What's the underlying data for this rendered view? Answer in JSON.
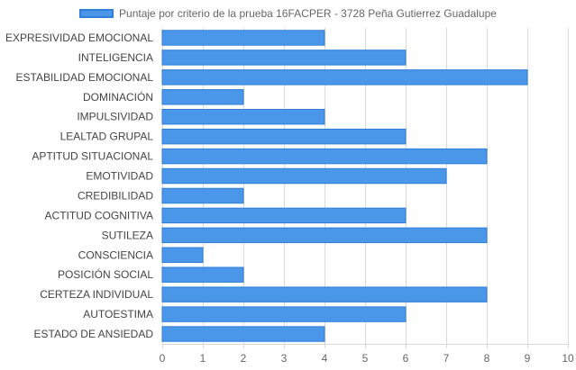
{
  "legend": {
    "label": "Puntaje por criterio de la prueba 16FACPER - 3728 Peña Gutierrez Guadalupe"
  },
  "colors": {
    "bar_fill": "#4a96e8",
    "bar_stroke": "#2f7fd8",
    "grid": "#d9d9d9",
    "axis_text": "#666666",
    "label_text": "#444444"
  },
  "chart_data": {
    "type": "bar",
    "orientation": "horizontal",
    "categories": [
      "EXPRESIVIDAD EMOCIONAL",
      "INTELIGENCIA",
      "ESTABILIDAD EMOCIONAL",
      "DOMINACIÓN",
      "IMPULSIVIDAD",
      "LEALTAD GRUPAL",
      "APTITUD SITUACIONAL",
      "EMOTIVIDAD",
      "CREDIBILIDAD",
      "ACTITUD COGNITIVA",
      "SUTILEZA",
      "CONSCIENCIA",
      "POSICIÓN SOCIAL",
      "CERTEZA INDIVIDUAL",
      "AUTOESTIMA",
      "ESTADO DE ANSIEDAD"
    ],
    "series": [
      {
        "name": "Puntaje por criterio de la prueba 16FACPER - 3728 Peña Gutierrez Guadalupe",
        "values": [
          4,
          6,
          9,
          2,
          4,
          6,
          8,
          7,
          2,
          6,
          8,
          1,
          2,
          8,
          6,
          4
        ]
      }
    ],
    "xlim": [
      0,
      10
    ],
    "xticks": [
      "0",
      "1",
      "2",
      "3",
      "4",
      "5",
      "6",
      "7",
      "8",
      "9",
      "10"
    ],
    "grid": true,
    "legend_position": "top"
  }
}
